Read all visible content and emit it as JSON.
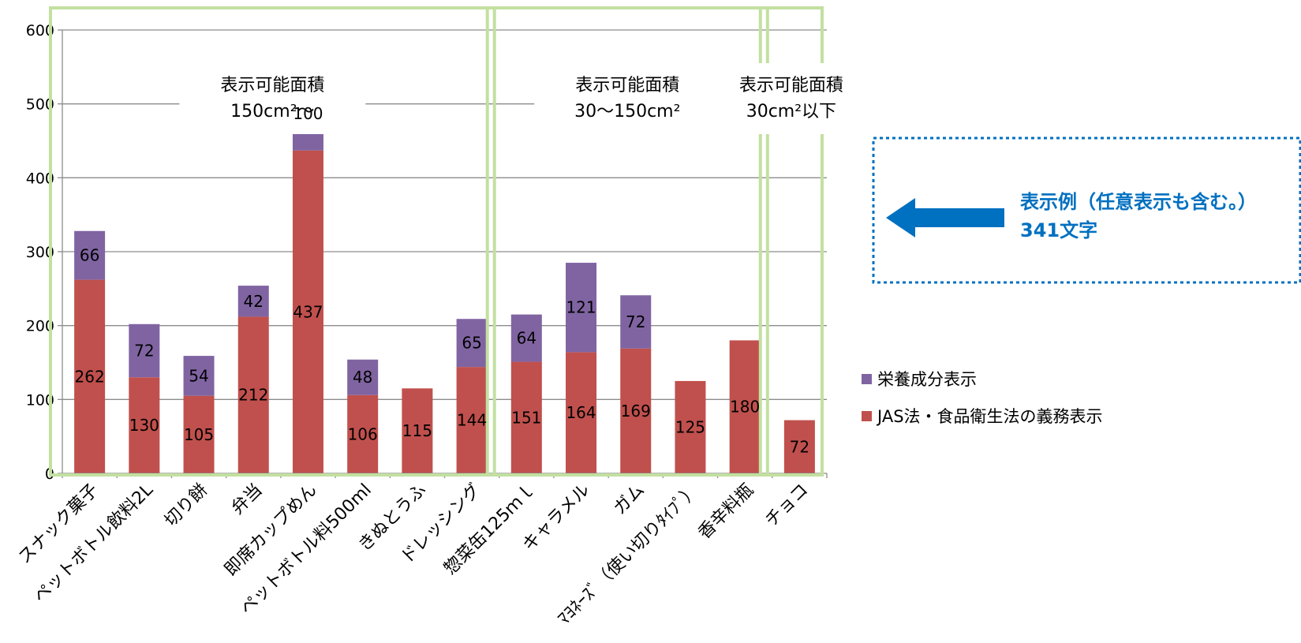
{
  "chart_data": {
    "type": "bar",
    "stacked": true,
    "categories": [
      "スナック菓子",
      "ペットボトル飲料2L",
      "切り餅",
      "弁当",
      "即席カップめん",
      "ペットボトル料500ml",
      "きぬとうふ",
      "ドレッシング",
      "惣菜缶125ｍｌ",
      "キャラメル",
      "ガム",
      "ﾏﾖﾈｰｽﾞ（使い切りﾀｲﾌﾟ）",
      "香辛料瓶",
      "チョコ"
    ],
    "series": [
      {
        "name": "JAS法・食品衛生法の義務表示",
        "color": "#c0504d",
        "values": [
          262,
          130,
          105,
          212,
          437,
          106,
          115,
          144,
          151,
          164,
          169,
          125,
          180,
          72
        ]
      },
      {
        "name": "栄養成分表示",
        "color": "#8064a2",
        "values": [
          66,
          72,
          54,
          42,
          100,
          48,
          null,
          65,
          64,
          121,
          72,
          null,
          null,
          null
        ]
      }
    ],
    "ylim": [
      0,
      600
    ],
    "yticks": [
      0,
      100,
      200,
      300,
      400,
      500,
      600
    ],
    "grid": true,
    "legend": "right",
    "groups": [
      {
        "line1": "表示可能面積",
        "line2": "150cm²〜",
        "from": 0,
        "to": 7
      },
      {
        "line1": "表示可能面積",
        "line2": "30〜150cm²",
        "from": 8,
        "to": 12
      },
      {
        "line1": "表示可能面積",
        "line2": "30cm²以下",
        "from": 13,
        "to": 13
      }
    ],
    "group_border_color": "#c3e0a0",
    "annotation": {
      "line1": "表示例（任意表示も含む。）",
      "line2": "341文字",
      "color": "#0070c0",
      "value": 341
    }
  }
}
